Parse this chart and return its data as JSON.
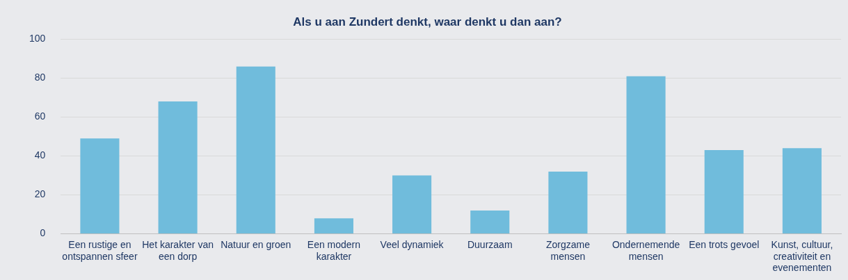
{
  "chart_data": {
    "type": "bar",
    "title": "Als u aan Zundert denkt, waar denkt u dan aan?",
    "categories": [
      "Een rustige en ontspannen sfeer",
      "Het karakter van een dorp",
      "Natuur en groen",
      "Een modern karakter",
      "Veel dynamiek",
      "Duurzaam",
      "Zorgzame mensen",
      "Ondernemende mensen",
      "Een trots gevoel",
      "Kunst, cultuur, creativiteit en evenementen"
    ],
    "values": [
      49,
      68,
      86,
      8,
      30,
      12,
      32,
      81,
      43,
      44
    ],
    "color": "#70bcdc",
    "ylim": [
      0,
      100
    ],
    "yticks": [
      0,
      20,
      40,
      60,
      80,
      100
    ],
    "grid": "y"
  }
}
